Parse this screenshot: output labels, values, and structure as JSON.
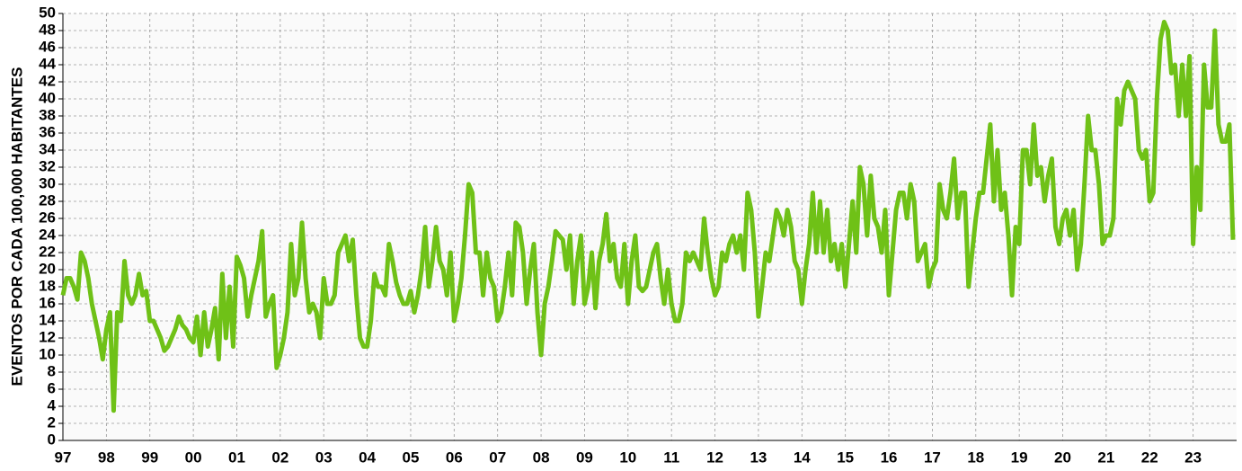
{
  "chart_data": {
    "type": "line",
    "y_label": "EVENTOS POR CADA 100,000 HABITANTES",
    "categories": [
      "97",
      null,
      null,
      null,
      null,
      null,
      null,
      null,
      null,
      null,
      null,
      null,
      "98",
      null,
      null,
      null,
      null,
      null,
      null,
      null,
      null,
      null,
      null,
      null,
      "99",
      null,
      null,
      null,
      null,
      null,
      null,
      null,
      null,
      null,
      null,
      null,
      "00",
      null,
      null,
      null,
      null,
      null,
      null,
      null,
      null,
      null,
      null,
      null,
      "01",
      null,
      null,
      null,
      null,
      null,
      null,
      null,
      null,
      null,
      null,
      null,
      "02",
      null,
      null,
      null,
      null,
      null,
      null,
      null,
      null,
      null,
      null,
      null,
      "03",
      null,
      null,
      null,
      null,
      null,
      null,
      null,
      null,
      null,
      null,
      null,
      "04",
      null,
      null,
      null,
      null,
      null,
      null,
      null,
      null,
      null,
      null,
      null,
      "05",
      null,
      null,
      null,
      null,
      null,
      null,
      null,
      null,
      null,
      null,
      null,
      "06",
      null,
      null,
      null,
      null,
      null,
      null,
      null,
      null,
      null,
      null,
      null,
      "07",
      null,
      null,
      null,
      null,
      null,
      null,
      null,
      null,
      null,
      null,
      null,
      "08",
      null,
      null,
      null,
      null,
      null,
      null,
      null,
      null,
      null,
      null,
      null,
      "09",
      null,
      null,
      null,
      null,
      null,
      null,
      null,
      null,
      null,
      null,
      null,
      "10",
      null,
      null,
      null,
      null,
      null,
      null,
      null,
      null,
      null,
      null,
      null,
      "11",
      null,
      null,
      null,
      null,
      null,
      null,
      null,
      null,
      null,
      null,
      null,
      "12",
      null,
      null,
      null,
      null,
      null,
      null,
      null,
      null,
      null,
      null,
      null,
      "13",
      null,
      null,
      null,
      null,
      null,
      null,
      null,
      null,
      null,
      null,
      null,
      "14",
      null,
      null,
      null,
      null,
      null,
      null,
      null,
      null,
      null,
      null,
      null,
      "15",
      null,
      null,
      null,
      null,
      null,
      null,
      null,
      null,
      null,
      null,
      null,
      "16",
      null,
      null,
      null,
      null,
      null,
      null,
      null,
      null,
      null,
      null,
      null,
      "17",
      null,
      null,
      null,
      null,
      null,
      null,
      null,
      null,
      null,
      null,
      null,
      "18",
      null,
      null,
      null,
      null,
      null,
      null,
      null,
      null,
      null,
      null,
      null,
      "19",
      null,
      null,
      null,
      null,
      null,
      null,
      null,
      null,
      null,
      null,
      null,
      "20",
      null,
      null,
      null,
      null,
      null,
      null,
      null,
      null,
      null,
      null,
      null,
      "21",
      null,
      null,
      null,
      null,
      null,
      null,
      null,
      null,
      null,
      null,
      null,
      "22",
      null,
      null,
      null,
      null,
      null,
      null,
      null,
      null,
      null,
      null,
      null,
      "23",
      null,
      null,
      null,
      null,
      null,
      null,
      null,
      null,
      null,
      null,
      null
    ],
    "series": [
      {
        "color": "#6fc117",
        "values": [
          17,
          19,
          19,
          18,
          16.5,
          22,
          21,
          19,
          16,
          14,
          12,
          9.5,
          13,
          15,
          3.5,
          15,
          14,
          21,
          17,
          16,
          17,
          19.5,
          17,
          17.5,
          14,
          14,
          13,
          12,
          10.5,
          11,
          12,
          13,
          14.5,
          13.5,
          13,
          12,
          11.5,
          14.5,
          10,
          15,
          11,
          13,
          15.5,
          9.5,
          19.5,
          12,
          18,
          11,
          21.5,
          20.5,
          19,
          14.5,
          17,
          19,
          21,
          24.5,
          14.5,
          16,
          17,
          8.5,
          10,
          12,
          15,
          23,
          17,
          19,
          25.5,
          19,
          15,
          16,
          15,
          12,
          19,
          16,
          16,
          17,
          22,
          23,
          24,
          21,
          23.5,
          17,
          12,
          11,
          11,
          14,
          19.5,
          18,
          18,
          17,
          23,
          21,
          18.5,
          17,
          16,
          16,
          17.5,
          15,
          17,
          20,
          25,
          18,
          21,
          25,
          21,
          20,
          17,
          22,
          14,
          16,
          19,
          24,
          30,
          29,
          22,
          22,
          17,
          22,
          19,
          18,
          14,
          15,
          18,
          22,
          17,
          25.5,
          25,
          22,
          16,
          20,
          23,
          15,
          10,
          16,
          18,
          21,
          24.5,
          24,
          23.5,
          20,
          24,
          16,
          21,
          24,
          16,
          18,
          22,
          15.5,
          21,
          23,
          26.5,
          21,
          23,
          19,
          18,
          23,
          16,
          21,
          24,
          18,
          17.5,
          18,
          20,
          22,
          23,
          19,
          16,
          20,
          16,
          14,
          14,
          16,
          22,
          21,
          22,
          21,
          20,
          26,
          22,
          19,
          17,
          18,
          22,
          21,
          23,
          24,
          22,
          24,
          20,
          29,
          27,
          22,
          14.5,
          18,
          22,
          21,
          24,
          27,
          26,
          24,
          27,
          25,
          21,
          20,
          16,
          20,
          23,
          29,
          22,
          28,
          22,
          27,
          21,
          23,
          20,
          23,
          18,
          23,
          28,
          22,
          32,
          30,
          24,
          31,
          26,
          25,
          22,
          27,
          17,
          22,
          27,
          29,
          29,
          26,
          30,
          28,
          21,
          22,
          23,
          18,
          20,
          21,
          30,
          27,
          26,
          29,
          33,
          26,
          29,
          29,
          18,
          22,
          26,
          29,
          29,
          33,
          37,
          28,
          34,
          27,
          29,
          24,
          17,
          25,
          23,
          34,
          34,
          30,
          37,
          31,
          32,
          28,
          31,
          33,
          25,
          23,
          26,
          27,
          24,
          27,
          20,
          23,
          30,
          38,
          34,
          34,
          30,
          23,
          24,
          24,
          26,
          40,
          37,
          41,
          42,
          41,
          40,
          34,
          33,
          34,
          28,
          29,
          40,
          47,
          49,
          48,
          43,
          44,
          38,
          44,
          38,
          45,
          23,
          32,
          27,
          44,
          39,
          39,
          48,
          37,
          35,
          35,
          37,
          23.5
        ]
      }
    ],
    "ylim": [
      0,
      50
    ],
    "yticks": [
      0,
      2,
      4,
      6,
      8,
      10,
      12,
      14,
      16,
      18,
      20,
      22,
      24,
      26,
      28,
      30,
      32,
      34,
      36,
      38,
      40,
      42,
      44,
      46,
      48,
      50
    ],
    "grid": true
  }
}
